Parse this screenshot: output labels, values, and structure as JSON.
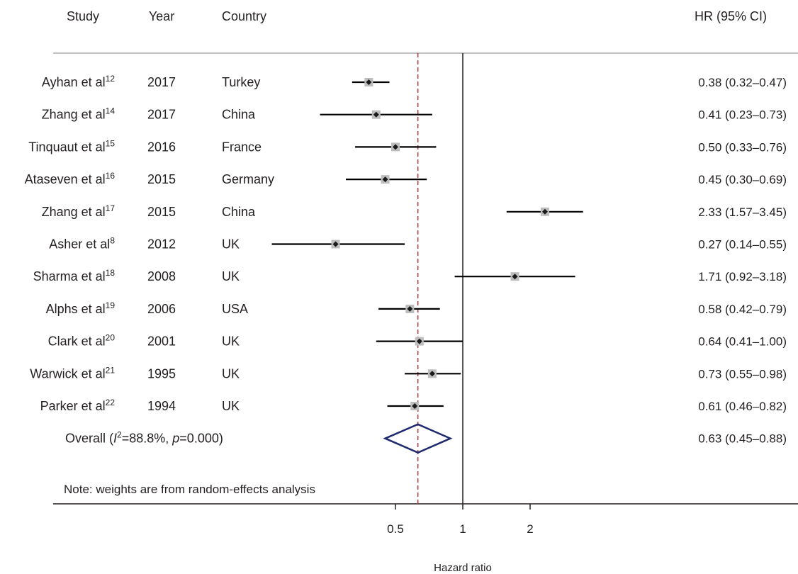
{
  "header": {
    "study": "Study",
    "year": "Year",
    "country": "Country",
    "hr": "HR (95% CI)"
  },
  "chart_data": {
    "type": "forest",
    "scale": "log",
    "xlabel": "Hazard ratio",
    "xticks": [
      {
        "value": 0.5,
        "label": "0.5"
      },
      {
        "value": 1,
        "label": "1"
      },
      {
        "value": 2,
        "label": "2"
      }
    ],
    "reference_line": 1,
    "pooled_line": 0.63,
    "studies": [
      {
        "author": "Ayhan et al",
        "ref": "12",
        "year": "2017",
        "country": "Turkey",
        "hr": 0.38,
        "lo": 0.32,
        "hi": 0.47,
        "label": "0.38 (0.32–0.47)"
      },
      {
        "author": "Zhang et al",
        "ref": "14",
        "year": "2017",
        "country": "China",
        "hr": 0.41,
        "lo": 0.23,
        "hi": 0.73,
        "label": "0.41 (0.23–0.73)"
      },
      {
        "author": "Tinquaut et al",
        "ref": "15",
        "year": "2016",
        "country": "France",
        "hr": 0.5,
        "lo": 0.33,
        "hi": 0.76,
        "label": "0.50 (0.33–0.76)"
      },
      {
        "author": "Ataseven et al",
        "ref": "16",
        "year": "2015",
        "country": "Germany",
        "hr": 0.45,
        "lo": 0.3,
        "hi": 0.69,
        "label": "0.45 (0.30–0.69)"
      },
      {
        "author": "Zhang et al",
        "ref": "17",
        "year": "2015",
        "country": "China",
        "hr": 2.33,
        "lo": 1.57,
        "hi": 3.45,
        "label": "2.33 (1.57–3.45)"
      },
      {
        "author": "Asher et al",
        "ref": "8",
        "year": "2012",
        "country": "UK",
        "hr": 0.27,
        "lo": 0.14,
        "hi": 0.55,
        "label": "0.27 (0.14–0.55)"
      },
      {
        "author": "Sharma et al",
        "ref": "18",
        "year": "2008",
        "country": "UK",
        "hr": 1.71,
        "lo": 0.92,
        "hi": 3.18,
        "label": "1.71 (0.92–3.18)"
      },
      {
        "author": "Alphs et al",
        "ref": "19",
        "year": "2006",
        "country": "USA",
        "hr": 0.58,
        "lo": 0.42,
        "hi": 0.79,
        "label": "0.58 (0.42–0.79)"
      },
      {
        "author": "Clark et al",
        "ref": "20",
        "year": "2001",
        "country": "UK",
        "hr": 0.64,
        "lo": 0.41,
        "hi": 1.0,
        "label": "0.64 (0.41–1.00)"
      },
      {
        "author": "Warwick et al",
        "ref": "21",
        "year": "1995",
        "country": "UK",
        "hr": 0.73,
        "lo": 0.55,
        "hi": 0.98,
        "label": "0.73 (0.55–0.98)"
      },
      {
        "author": "Parker et al",
        "ref": "22",
        "year": "1994",
        "country": "UK",
        "hr": 0.61,
        "lo": 0.46,
        "hi": 0.82,
        "label": "0.61 (0.46–0.82)"
      }
    ],
    "overall": {
      "text_before": "Overall (",
      "i2_symbol": "I",
      "i2_sup": "2",
      "i2_value": "=88.8%, ",
      "p_symbol": "p",
      "p_value": "=0.000)",
      "hr": 0.63,
      "lo": 0.45,
      "hi": 0.88,
      "label": "0.63 (0.45–0.88)"
    },
    "note": "Note: weights are from random-effects analysis",
    "colors": {
      "text": "#231f20",
      "ci_line": "#000000",
      "weight_box": "#bdbdbd",
      "point": "#1a1a1a",
      "pooled_line": "#b03a3a",
      "diamond": "#1f2b6e",
      "rule": "#9a9a9a"
    }
  }
}
